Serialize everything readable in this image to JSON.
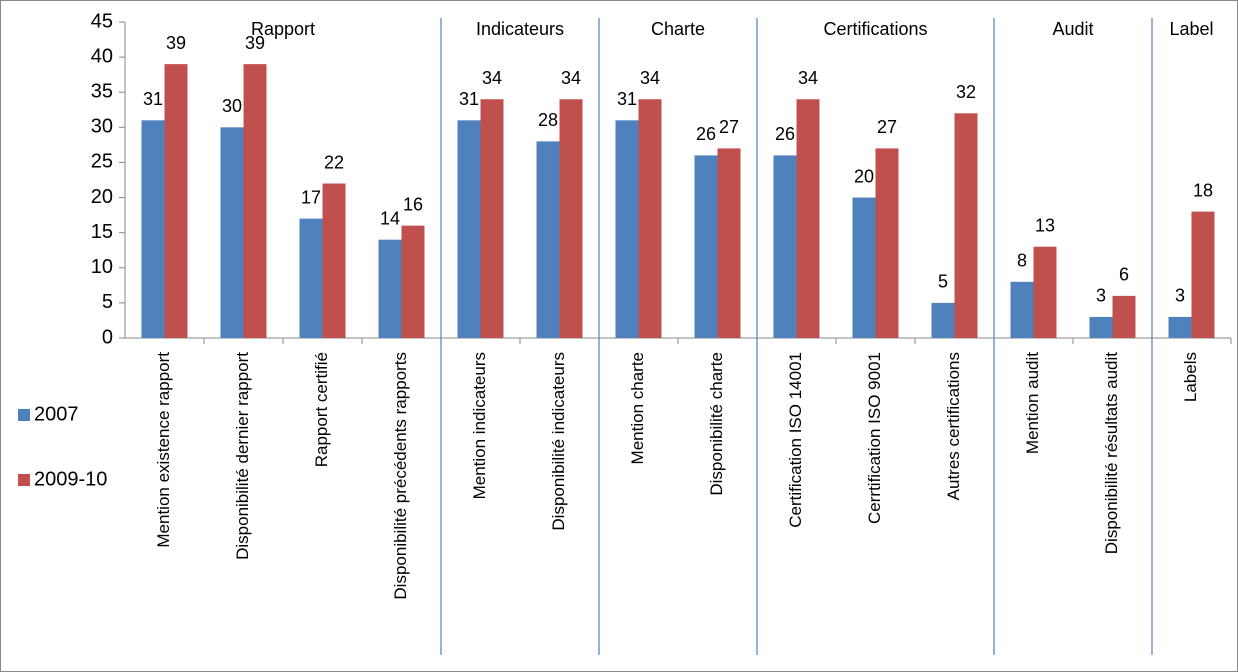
{
  "chart_data": {
    "type": "bar",
    "groups": [
      {
        "name": "Rapport",
        "categories": [
          "Mention existence rapport",
          "Disponibilité dernier rapport",
          "Rapport certifié",
          "Disponibilité précédents rapports"
        ]
      },
      {
        "name": "Indicateurs",
        "categories": [
          "Mention indicateurs",
          "Disponibilité indicateurs"
        ]
      },
      {
        "name": "Charte",
        "categories": [
          "Mention charte",
          "Disponibilité charte"
        ]
      },
      {
        "name": "Certifications",
        "categories": [
          "Certification ISO 14001",
          "Cerrtification ISO 9001",
          "Autres certifications"
        ]
      },
      {
        "name": "Audit",
        "categories": [
          "Mention audit",
          "Disponibilité résultats audit"
        ]
      },
      {
        "name": "Label",
        "categories": [
          "Labels"
        ]
      }
    ],
    "series": [
      {
        "name": "2007",
        "color": "#4f81bd",
        "values": [
          31,
          30,
          17,
          14,
          31,
          28,
          31,
          26,
          26,
          20,
          5,
          8,
          3,
          3
        ]
      },
      {
        "name": "2009-10",
        "color": "#c0504d",
        "values": [
          39,
          39,
          22,
          16,
          34,
          34,
          34,
          27,
          34,
          27,
          32,
          13,
          6,
          18
        ]
      }
    ],
    "ylim": [
      0,
      45
    ],
    "yticks": [
      0,
      5,
      10,
      15,
      20,
      25,
      30,
      35,
      40,
      45
    ],
    "legend": "left"
  }
}
